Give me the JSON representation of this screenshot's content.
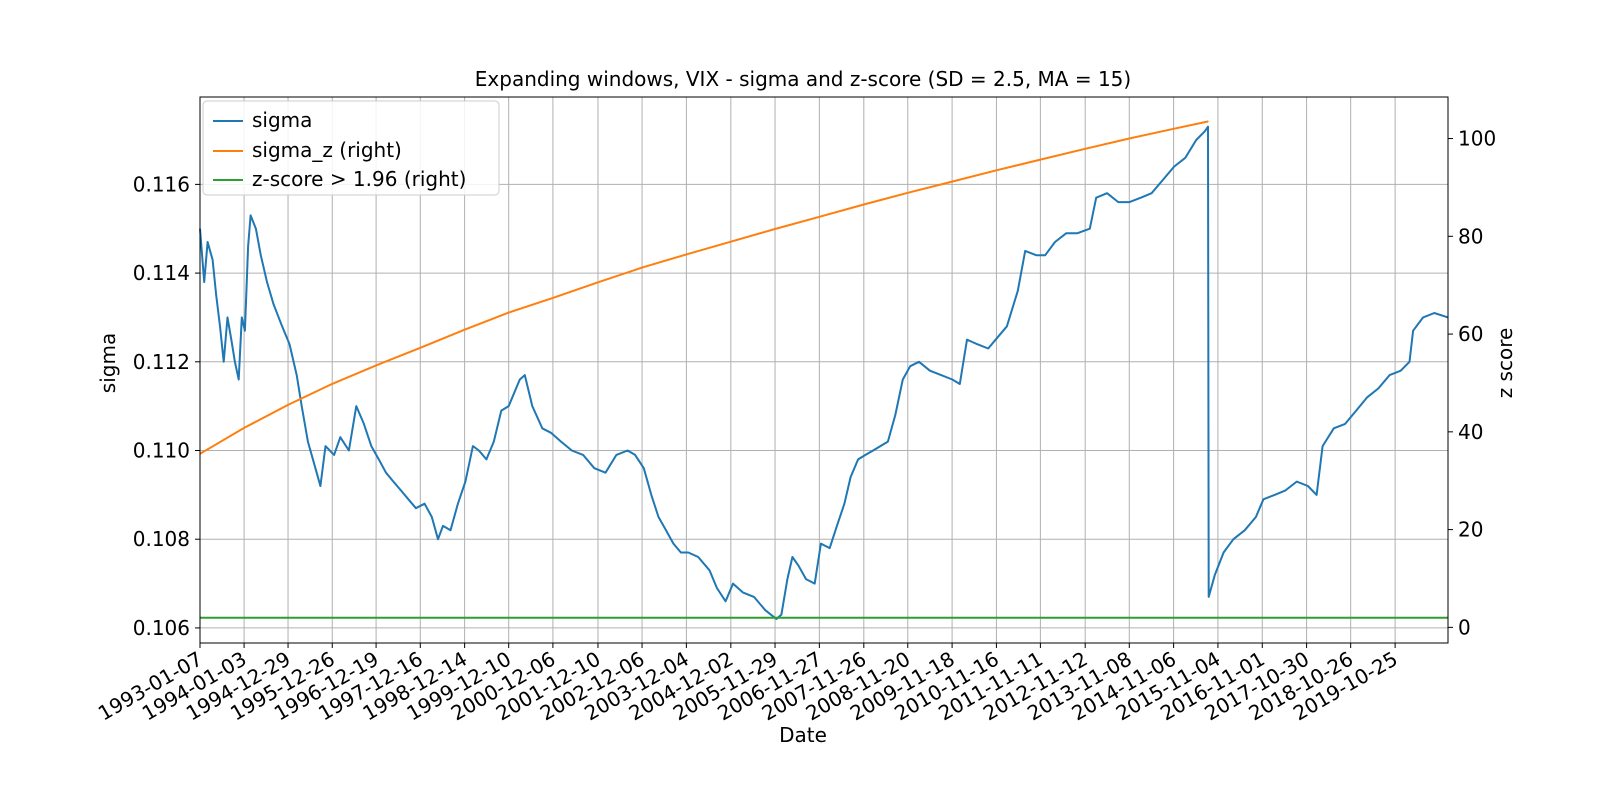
{
  "chart_data": {
    "type": "line",
    "title": "Expanding windows, VIX - sigma and z-score (SD = 2.5, MA = 15)",
    "xlabel": "Date",
    "ylabel": "sigma",
    "ylabel_right": "z score",
    "x_ticks": [
      "1993-01-07",
      "1994-01-03",
      "1994-12-29",
      "1995-12-26",
      "1996-12-19",
      "1997-12-16",
      "1998-12-14",
      "1999-12-10",
      "2000-12-06",
      "2001-12-10",
      "2002-12-06",
      "2003-12-04",
      "2004-12-02",
      "2005-11-29",
      "2006-11-27",
      "2007-11-26",
      "2008-11-20",
      "2009-11-18",
      "2010-11-16",
      "2011-11-11",
      "2012-11-12",
      "2013-11-08",
      "2014-11-06",
      "2015-11-04",
      "2016-11-01",
      "2017-10-30",
      "2018-10-26",
      "2019-10-25"
    ],
    "xlim": [
      "1993-01-07",
      "2020-12-31"
    ],
    "ylim": [
      0.10566,
      0.11797
    ],
    "y_ticks": [
      "0.106",
      "0.108",
      "0.110",
      "0.112",
      "0.114",
      "0.116"
    ],
    "ylim_right": [
      -3.2,
      108.5
    ],
    "y_ticks_right": [
      "0",
      "20",
      "40",
      "60",
      "80",
      "100"
    ],
    "grid": true,
    "legend_position": "top-left",
    "legend": [
      "sigma",
      "sigma_z (right)",
      "z-score > 1.96 (right)"
    ],
    "series": [
      {
        "name": "sigma",
        "axis": "left",
        "color": "#1f77b4",
        "points": [
          [
            "1993-01-07",
            0.115
          ],
          [
            "1993-02-10",
            0.1138
          ],
          [
            "1993-03-10",
            0.1147
          ],
          [
            "1993-04-20",
            0.1143
          ],
          [
            "1993-05-20",
            0.1135
          ],
          [
            "1993-06-20",
            0.1128
          ],
          [
            "1993-07-20",
            0.112
          ],
          [
            "1993-08-20",
            0.113
          ],
          [
            "1993-09-20",
            0.1125
          ],
          [
            "1993-10-20",
            0.112
          ],
          [
            "1993-11-20",
            0.1116
          ],
          [
            "1993-12-15",
            0.113
          ],
          [
            "1994-01-10",
            0.1127
          ],
          [
            "1994-02-05",
            0.1146
          ],
          [
            "1994-02-25",
            0.1153
          ],
          [
            "1994-04-10",
            0.115
          ],
          [
            "1994-05-20",
            0.1144
          ],
          [
            "1994-07-10",
            0.1138
          ],
          [
            "1994-09-01",
            0.1133
          ],
          [
            "1994-11-10",
            0.1128
          ],
          [
            "1995-01-10",
            0.1124
          ],
          [
            "1995-03-10",
            0.1117
          ],
          [
            "1995-04-20",
            0.111
          ],
          [
            "1995-06-10",
            0.1102
          ],
          [
            "1995-08-10",
            0.1096
          ],
          [
            "1995-09-20",
            0.1092
          ],
          [
            "1995-11-01",
            0.1101
          ],
          [
            "1996-01-10",
            0.1099
          ],
          [
            "1996-03-01",
            0.1103
          ],
          [
            "1996-05-10",
            0.11
          ],
          [
            "1996-07-10",
            0.111
          ],
          [
            "1996-09-10",
            0.1106
          ],
          [
            "1996-11-10",
            0.1101
          ],
          [
            "1997-01-10",
            0.1098
          ],
          [
            "1997-03-10",
            0.1095
          ],
          [
            "1997-05-10",
            0.1093
          ],
          [
            "1997-07-10",
            0.1091
          ],
          [
            "1997-09-10",
            0.1089
          ],
          [
            "1997-11-10",
            0.1087
          ],
          [
            "1998-01-20",
            0.1088
          ],
          [
            "1998-03-20",
            0.1085
          ],
          [
            "1998-05-10",
            0.108
          ],
          [
            "1998-06-20",
            0.1083
          ],
          [
            "1998-08-20",
            0.1082
          ],
          [
            "1998-10-20",
            0.1088
          ],
          [
            "1998-12-20",
            0.1093
          ],
          [
            "1999-02-20",
            0.1101
          ],
          [
            "1999-04-10",
            0.11
          ],
          [
            "1999-06-10",
            0.1098
          ],
          [
            "1999-08-10",
            0.1102
          ],
          [
            "1999-10-10",
            0.1109
          ],
          [
            "1999-12-10",
            0.111
          ],
          [
            "2000-03-10",
            0.1116
          ],
          [
            "2000-04-20",
            0.1117
          ],
          [
            "2000-06-20",
            0.111
          ],
          [
            "2000-09-10",
            0.1105
          ],
          [
            "2000-11-20",
            0.1104
          ],
          [
            "2001-02-10",
            0.1102
          ],
          [
            "2001-05-10",
            0.11
          ],
          [
            "2001-08-10",
            0.1099
          ],
          [
            "2001-11-10",
            0.1096
          ],
          [
            "2002-02-10",
            0.1095
          ],
          [
            "2002-05-10",
            0.1099
          ],
          [
            "2002-08-10",
            0.11
          ],
          [
            "2002-10-10",
            0.1099
          ],
          [
            "2002-12-20",
            0.1096
          ],
          [
            "2003-02-20",
            0.109
          ],
          [
            "2003-04-20",
            0.1085
          ],
          [
            "2003-06-20",
            0.1082
          ],
          [
            "2003-08-20",
            0.1079
          ],
          [
            "2003-10-20",
            0.1077
          ],
          [
            "2003-12-20",
            0.1077
          ],
          [
            "2004-03-10",
            0.1076
          ],
          [
            "2004-06-10",
            0.1073
          ],
          [
            "2004-08-10",
            0.1069
          ],
          [
            "2004-10-20",
            0.1066
          ],
          [
            "2004-12-20",
            0.107
          ],
          [
            "2005-03-10",
            0.1068
          ],
          [
            "2005-06-10",
            0.1067
          ],
          [
            "2005-09-10",
            0.1064
          ],
          [
            "2005-12-10",
            0.1062
          ],
          [
            "2006-01-20",
            0.1063
          ],
          [
            "2006-03-10",
            0.1071
          ],
          [
            "2006-04-20",
            0.1076
          ],
          [
            "2006-06-10",
            0.1074
          ],
          [
            "2006-08-10",
            0.1071
          ],
          [
            "2006-10-20",
            0.107
          ],
          [
            "2006-12-10",
            0.1079
          ],
          [
            "2007-02-20",
            0.1078
          ],
          [
            "2007-04-20",
            0.1083
          ],
          [
            "2007-06-20",
            0.1088
          ],
          [
            "2007-08-10",
            0.1094
          ],
          [
            "2007-10-10",
            0.1098
          ],
          [
            "2007-12-10",
            0.1099
          ],
          [
            "2008-02-10",
            0.11
          ],
          [
            "2008-04-10",
            0.1101
          ],
          [
            "2008-06-10",
            0.1102
          ],
          [
            "2008-08-10",
            0.1108
          ],
          [
            "2008-10-10",
            0.1116
          ],
          [
            "2008-12-10",
            0.1119
          ],
          [
            "2009-02-20",
            0.112
          ],
          [
            "2009-05-20",
            0.1118
          ],
          [
            "2009-08-20",
            0.1117
          ],
          [
            "2009-11-20",
            0.1116
          ],
          [
            "2010-01-20",
            0.1115
          ],
          [
            "2010-03-20",
            0.1125
          ],
          [
            "2010-06-10",
            0.1124
          ],
          [
            "2010-09-10",
            0.1123
          ],
          [
            "2010-12-10",
            0.1126
          ],
          [
            "2011-02-10",
            0.1128
          ],
          [
            "2011-05-10",
            0.1136
          ],
          [
            "2011-07-10",
            0.1145
          ],
          [
            "2011-10-10",
            0.1144
          ],
          [
            "2011-12-20",
            0.1144
          ],
          [
            "2012-03-10",
            0.1147
          ],
          [
            "2012-06-10",
            0.1149
          ],
          [
            "2012-09-10",
            0.1149
          ],
          [
            "2012-12-20",
            0.115
          ],
          [
            "2013-02-10",
            0.1157
          ],
          [
            "2013-05-10",
            0.1158
          ],
          [
            "2013-08-10",
            0.1156
          ],
          [
            "2013-11-10",
            0.1156
          ],
          [
            "2014-02-10",
            0.1157
          ],
          [
            "2014-05-10",
            0.1158
          ],
          [
            "2014-08-10",
            0.1161
          ],
          [
            "2014-11-10",
            0.1164
          ],
          [
            "2015-02-10",
            0.1166
          ],
          [
            "2015-05-10",
            0.117
          ],
          [
            "2015-07-20",
            0.1172
          ],
          [
            "2015-08-15",
            0.1173
          ],
          [
            "2015-08-20",
            0.1067
          ],
          [
            "2015-10-10",
            0.1072
          ],
          [
            "2015-12-20",
            0.1077
          ],
          [
            "2016-03-10",
            0.108
          ],
          [
            "2016-06-10",
            0.1082
          ],
          [
            "2016-09-10",
            0.1085
          ],
          [
            "2016-11-10",
            0.1089
          ],
          [
            "2017-02-10",
            0.109
          ],
          [
            "2017-05-10",
            0.1091
          ],
          [
            "2017-08-10",
            0.1093
          ],
          [
            "2017-11-10",
            0.1092
          ],
          [
            "2018-01-20",
            0.109
          ],
          [
            "2018-03-10",
            0.1101
          ],
          [
            "2018-06-10",
            0.1105
          ],
          [
            "2018-09-10",
            0.1106
          ],
          [
            "2018-12-10",
            0.1109
          ],
          [
            "2019-03-10",
            0.1112
          ],
          [
            "2019-06-10",
            0.1114
          ],
          [
            "2019-09-10",
            0.1117
          ],
          [
            "2019-12-10",
            0.1118
          ],
          [
            "2020-02-20",
            0.112
          ],
          [
            "2020-03-20",
            0.1127
          ],
          [
            "2020-06-10",
            0.113
          ],
          [
            "2020-09-10",
            0.1131
          ],
          [
            "2020-12-31",
            0.113
          ]
        ]
      },
      {
        "name": "sigma_z (right)",
        "axis": "right",
        "color": "#ff7f0e",
        "points": [
          [
            "1993-01-07",
            35.5
          ],
          [
            "1994-01-03",
            40.8
          ],
          [
            "1994-12-29",
            45.5
          ],
          [
            "1995-12-26",
            49.8
          ],
          [
            "1996-12-19",
            53.6
          ],
          [
            "1997-12-16",
            57.2
          ],
          [
            "1998-12-14",
            60.9
          ],
          [
            "1999-12-10",
            64.4
          ],
          [
            "2000-12-06",
            67.4
          ],
          [
            "2001-12-10",
            70.6
          ],
          [
            "2002-12-06",
            73.6
          ],
          [
            "2003-12-04",
            76.3
          ],
          [
            "2004-12-02",
            78.9
          ],
          [
            "2005-11-29",
            81.5
          ],
          [
            "2006-11-27",
            84.0
          ],
          [
            "2007-11-26",
            86.5
          ],
          [
            "2008-11-20",
            88.9
          ],
          [
            "2009-11-18",
            91.2
          ],
          [
            "2010-11-16",
            93.5
          ],
          [
            "2011-11-11",
            95.7
          ],
          [
            "2012-11-12",
            97.9
          ],
          [
            "2013-11-08",
            100.0
          ],
          [
            "2014-11-06",
            102.0
          ],
          [
            "2015-08-18",
            103.5
          ]
        ]
      },
      {
        "name": "z-score > 1.96 (right)",
        "axis": "right",
        "color": "#2ca02c",
        "points": [
          [
            "1993-01-07",
            1.96
          ],
          [
            "2020-12-31",
            1.96
          ]
        ]
      }
    ]
  }
}
